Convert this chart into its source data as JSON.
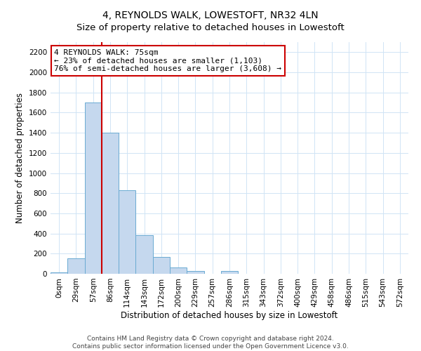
{
  "title": "4, REYNOLDS WALK, LOWESTOFT, NR32 4LN",
  "subtitle": "Size of property relative to detached houses in Lowestoft",
  "xlabel": "Distribution of detached houses by size in Lowestoft",
  "ylabel": "Number of detached properties",
  "bar_labels": [
    "0sqm",
    "29sqm",
    "57sqm",
    "86sqm",
    "114sqm",
    "143sqm",
    "172sqm",
    "200sqm",
    "229sqm",
    "257sqm",
    "286sqm",
    "315sqm",
    "343sqm",
    "372sqm",
    "400sqm",
    "429sqm",
    "458sqm",
    "486sqm",
    "515sqm",
    "543sqm",
    "572sqm"
  ],
  "bar_values": [
    15,
    155,
    1700,
    1400,
    830,
    380,
    165,
    65,
    28,
    0,
    28,
    0,
    0,
    0,
    0,
    0,
    0,
    0,
    0,
    0,
    0
  ],
  "bar_color": "#c5d8ee",
  "bar_edge_color": "#6aabd2",
  "vline_color": "#cc0000",
  "annotation_text": "4 REYNOLDS WALK: 75sqm\n← 23% of detached houses are smaller (1,103)\n76% of semi-detached houses are larger (3,608) →",
  "annotation_box_facecolor": "white",
  "annotation_box_edgecolor": "#cc0000",
  "ylim": [
    0,
    2300
  ],
  "yticks": [
    0,
    200,
    400,
    600,
    800,
    1000,
    1200,
    1400,
    1600,
    1800,
    2000,
    2200
  ],
  "grid_color": "#d0e4f5",
  "footer_line1": "Contains HM Land Registry data © Crown copyright and database right 2024.",
  "footer_line2": "Contains public sector information licensed under the Open Government Licence v3.0.",
  "title_fontsize": 10,
  "xlabel_fontsize": 8.5,
  "ylabel_fontsize": 8.5,
  "tick_fontsize": 7.5,
  "annotation_fontsize": 8,
  "footer_fontsize": 6.5
}
